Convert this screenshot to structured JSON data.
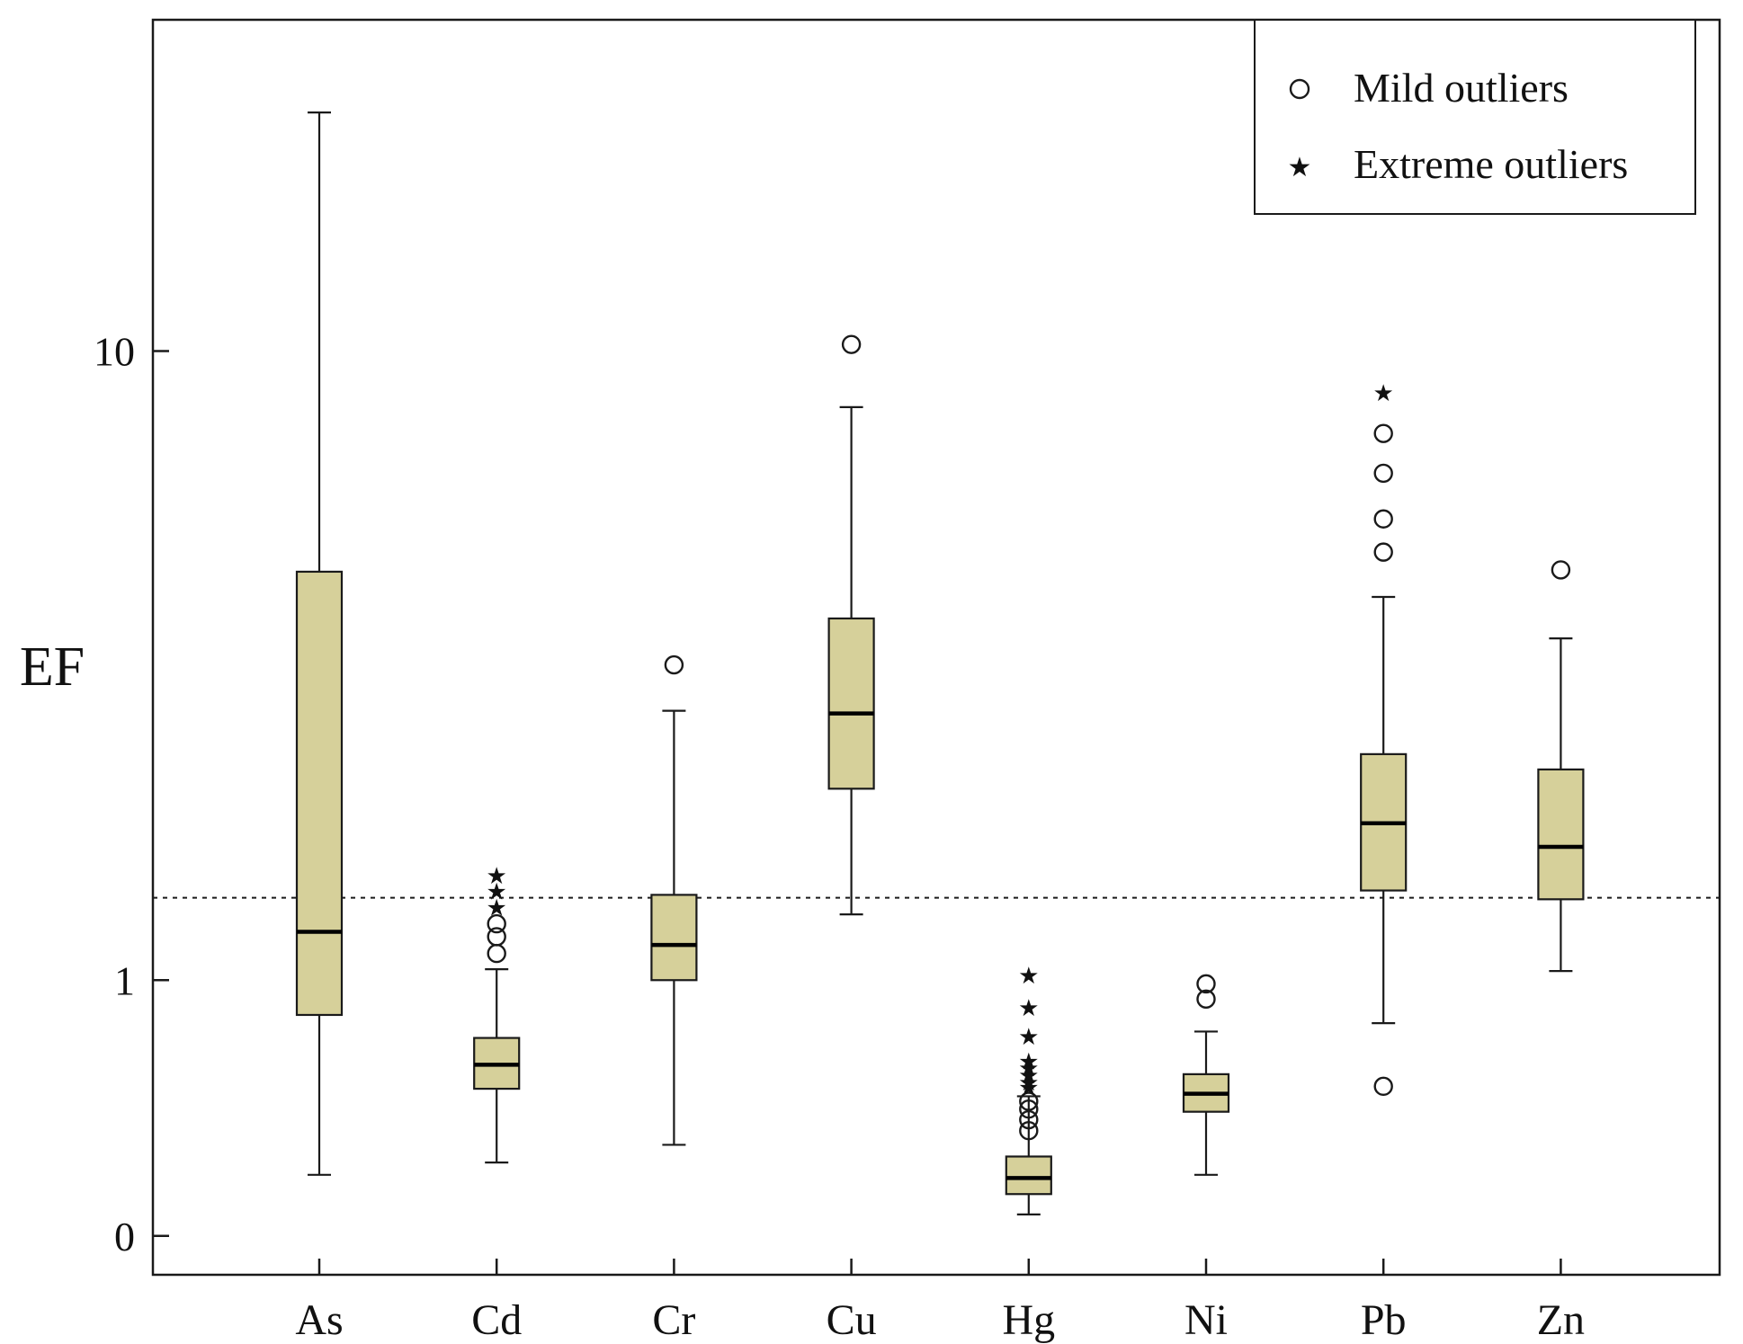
{
  "chart_data": {
    "type": "box",
    "title": "",
    "xlabel": "",
    "ylabel": "EF",
    "y_scale": "log10(EF + 1)",
    "ylim": [
      -0.1,
      26
    ],
    "y_ticks": [
      {
        "value": 0,
        "label": "0"
      },
      {
        "value": 1,
        "label": "1"
      },
      {
        "value": 10,
        "label": "10"
      }
    ],
    "reference_line": {
      "value": 1.5,
      "style": "dotted"
    },
    "box_color": "#d6d09a",
    "edge_color": "#1a1a1a",
    "categories": [
      "As",
      "Cd",
      "Cr",
      "Cu",
      "Hg",
      "Ni",
      "Pb",
      "Zn"
    ],
    "boxes": [
      {
        "name": "As",
        "whisker_low": 0.18,
        "q1": 0.82,
        "median": 1.28,
        "q3": 5.05,
        "whisker_high": 20.0,
        "mild_outliers": [],
        "extreme_outliers": []
      },
      {
        "name": "Cd",
        "whisker_low": 0.22,
        "q1": 0.49,
        "median": 0.59,
        "q3": 0.71,
        "whisker_high": 1.06,
        "mild_outliers": [
          1.15,
          1.25,
          1.33
        ],
        "extreme_outliers": [
          1.44,
          1.55,
          1.66
        ]
      },
      {
        "name": "Cr",
        "whisker_low": 0.28,
        "q1": 1.0,
        "median": 1.2,
        "q3": 1.52,
        "whisker_high": 3.15,
        "mild_outliers": [
          3.7
        ],
        "extreme_outliers": []
      },
      {
        "name": "Cu",
        "whisker_low": 1.39,
        "q1": 2.36,
        "median": 3.12,
        "q3": 4.33,
        "whisker_high": 8.45,
        "mild_outliers": [
          10.2
        ],
        "extreme_outliers": []
      },
      {
        "name": "Hg",
        "whisker_low": 0.06,
        "q1": 0.12,
        "median": 0.17,
        "q3": 0.24,
        "whisker_high": 0.46,
        "mild_outliers": [
          0.33,
          0.37,
          0.41,
          0.44
        ],
        "extreme_outliers": [
          0.5,
          0.52,
          0.55,
          0.58,
          0.61,
          0.72,
          0.86,
          1.03
        ]
      },
      {
        "name": "Ni",
        "whisker_low": 0.18,
        "q1": 0.4,
        "median": 0.47,
        "q3": 0.55,
        "whisker_high": 0.74,
        "mild_outliers": [
          0.9,
          0.98
        ],
        "extreme_outliers": []
      },
      {
        "name": "Pb",
        "whisker_low": 0.78,
        "q1": 1.55,
        "median": 2.06,
        "q3": 2.69,
        "whisker_high": 4.65,
        "mild_outliers": [
          0.5,
          5.38,
          5.98,
          6.9,
          7.8
        ],
        "extreme_outliers": [
          8.85
        ]
      },
      {
        "name": "Zn",
        "whisker_low": 1.05,
        "q1": 1.49,
        "median": 1.87,
        "q3": 2.54,
        "whisker_high": 4.05,
        "mild_outliers": [
          5.08
        ],
        "extreme_outliers": []
      }
    ],
    "legend": {
      "position": "top-right",
      "entries": [
        {
          "marker": "circle",
          "label": "Mild outliers"
        },
        {
          "marker": "star",
          "label": "Extreme outliers"
        }
      ]
    }
  }
}
